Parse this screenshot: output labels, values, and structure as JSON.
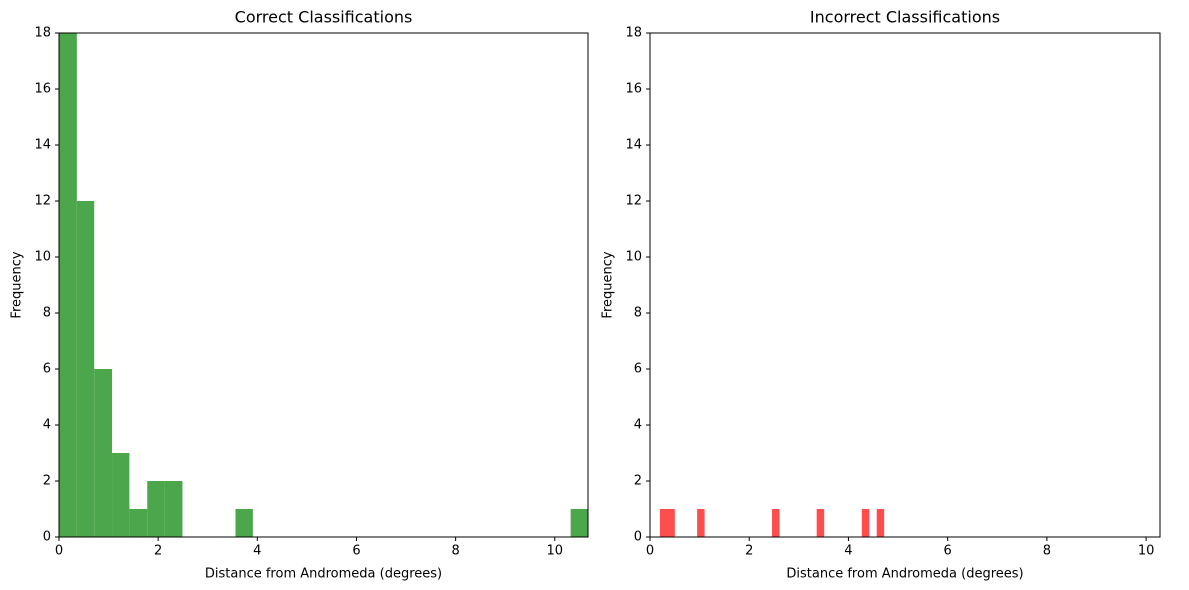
{
  "chart_data": [
    {
      "type": "histogram",
      "title": "Correct Classifications",
      "xlabel": "Distance from Andromeda (degrees)",
      "ylabel": "Frequency",
      "bins": [
        0,
        0.36,
        0.71,
        1.07,
        1.42,
        1.78,
        2.13,
        2.49,
        2.85,
        3.2,
        3.56,
        3.91,
        4.27,
        4.62,
        4.98,
        5.34,
        5.69,
        6.05,
        6.4,
        6.76,
        7.11,
        7.47,
        7.83,
        8.18,
        8.54,
        8.89,
        9.25,
        9.6,
        9.96,
        10.32,
        10.67
      ],
      "counts": [
        18,
        12,
        6,
        3,
        1,
        2,
        2,
        0,
        0,
        0,
        1,
        0,
        0,
        0,
        0,
        0,
        0,
        0,
        0,
        0,
        0,
        0,
        0,
        0,
        0,
        0,
        0,
        0,
        0,
        1
      ],
      "color": "#4ca64c",
      "xlim": [
        0,
        10.67
      ],
      "ylim": [
        0,
        18
      ],
      "xticks": [
        0,
        2,
        4,
        6,
        8,
        10
      ],
      "yticks": [
        0,
        2,
        4,
        6,
        8,
        10,
        12,
        14,
        16,
        18
      ]
    },
    {
      "type": "histogram",
      "title": "Incorrect Classifications",
      "xlabel": "Distance from Andromeda (degrees)",
      "ylabel": "Frequency",
      "bins": [
        0.2,
        0.35,
        0.5,
        0.65,
        0.8,
        0.95,
        1.1,
        1.25,
        1.41,
        1.56,
        1.71,
        1.86,
        2.01,
        2.16,
        2.31,
        2.46,
        2.61,
        2.76,
        2.91,
        3.06,
        3.21,
        3.36,
        3.51,
        3.67,
        3.82,
        3.97,
        4.12,
        4.27,
        4.42,
        4.57,
        4.72
      ],
      "counts": [
        1,
        1,
        0,
        0,
        0,
        1,
        0,
        0,
        0,
        0,
        0,
        0,
        0,
        0,
        0,
        1,
        0,
        0,
        0,
        0,
        0,
        1,
        0,
        0,
        0,
        0,
        0,
        1,
        0,
        1
      ],
      "color": "#ff4d4d",
      "xlim": [
        0,
        10.28
      ],
      "ylim": [
        0,
        18
      ],
      "xticks": [
        0,
        2,
        4,
        6,
        8,
        10
      ],
      "yticks": [
        0,
        2,
        4,
        6,
        8,
        10,
        12,
        14,
        16,
        18
      ]
    }
  ]
}
